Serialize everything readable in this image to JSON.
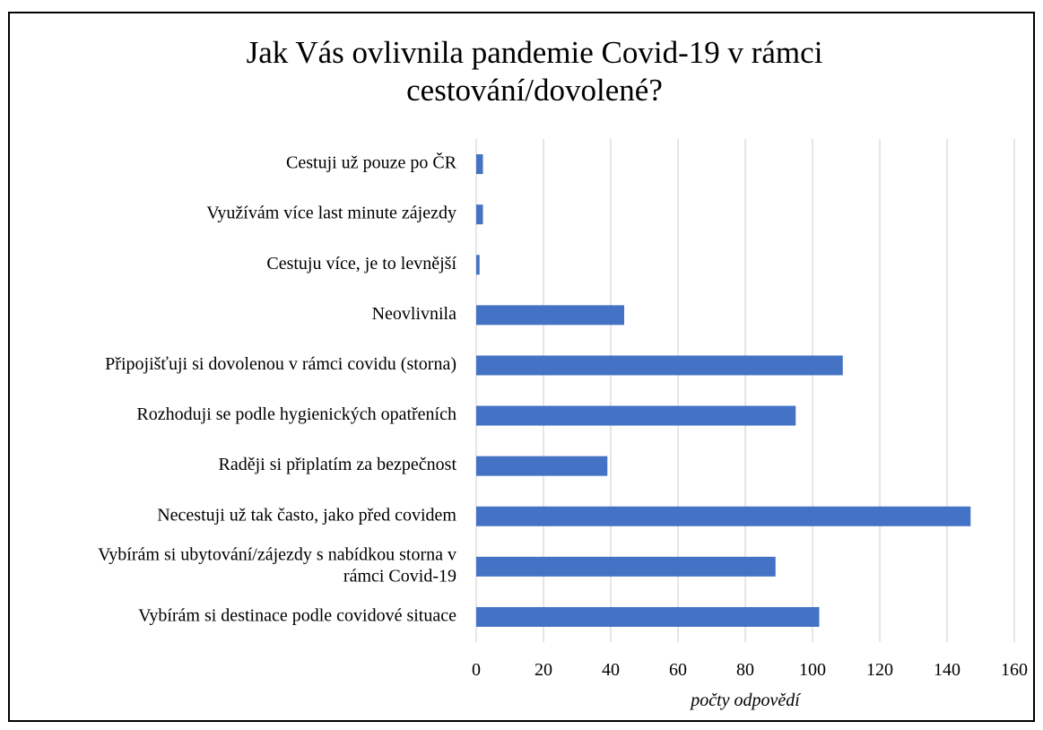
{
  "chart_data": {
    "type": "bar",
    "orientation": "horizontal",
    "title": "Jak Vás ovlivnila pandemie Covid-19 v rámci cestování/dovolené?",
    "title_lines": [
      "Jak Vás ovlivnila pandemie Covid-19 v rámci",
      "cestování/dovolené?"
    ],
    "xlabel": "počty odpovědí",
    "ylabel": "",
    "xlim": [
      0,
      160
    ],
    "xticks": [
      0,
      20,
      40,
      60,
      80,
      100,
      120,
      140,
      160
    ],
    "grid": true,
    "bar_color": "#4472c4",
    "categories": [
      "Cestuji už pouze po ČR",
      "Využívám více last minute zájezdy",
      "Cestuju více, je to levnější",
      "Neovlivnila",
      "Připojišťuji si dovolenou v rámci covidu (storna)",
      "Rozhoduji se podle hygienických opatřeních",
      "Raději si připlatím za bezpečnost",
      "Necestuji už tak často, jako před covidem",
      "Vybírám si ubytování/zájezdy s nabídkou storna v rámci Covid-19",
      "Vybírám si destinace podle covidové situace"
    ],
    "category_label_lines": [
      [
        "Cestuji už pouze po ČR"
      ],
      [
        "Využívám více last minute zájezdy"
      ],
      [
        "Cestuju více, je to levnější"
      ],
      [
        "Neovlivnila"
      ],
      [
        "Připojišťuji si dovolenou v rámci covidu (storna)"
      ],
      [
        "Rozhoduji se podle hygienických opatřeních"
      ],
      [
        "Raději si připlatím za bezpečnost"
      ],
      [
        "Necestuji už tak často, jako před covidem"
      ],
      [
        "Vybírám si ubytování/zájezdy s nabídkou storna v",
        "rámci Covid-19"
      ],
      [
        "Vybírám si destinace podle covidové situace"
      ]
    ],
    "values": [
      2,
      2,
      1,
      44,
      109,
      95,
      39,
      147,
      89,
      102
    ]
  }
}
